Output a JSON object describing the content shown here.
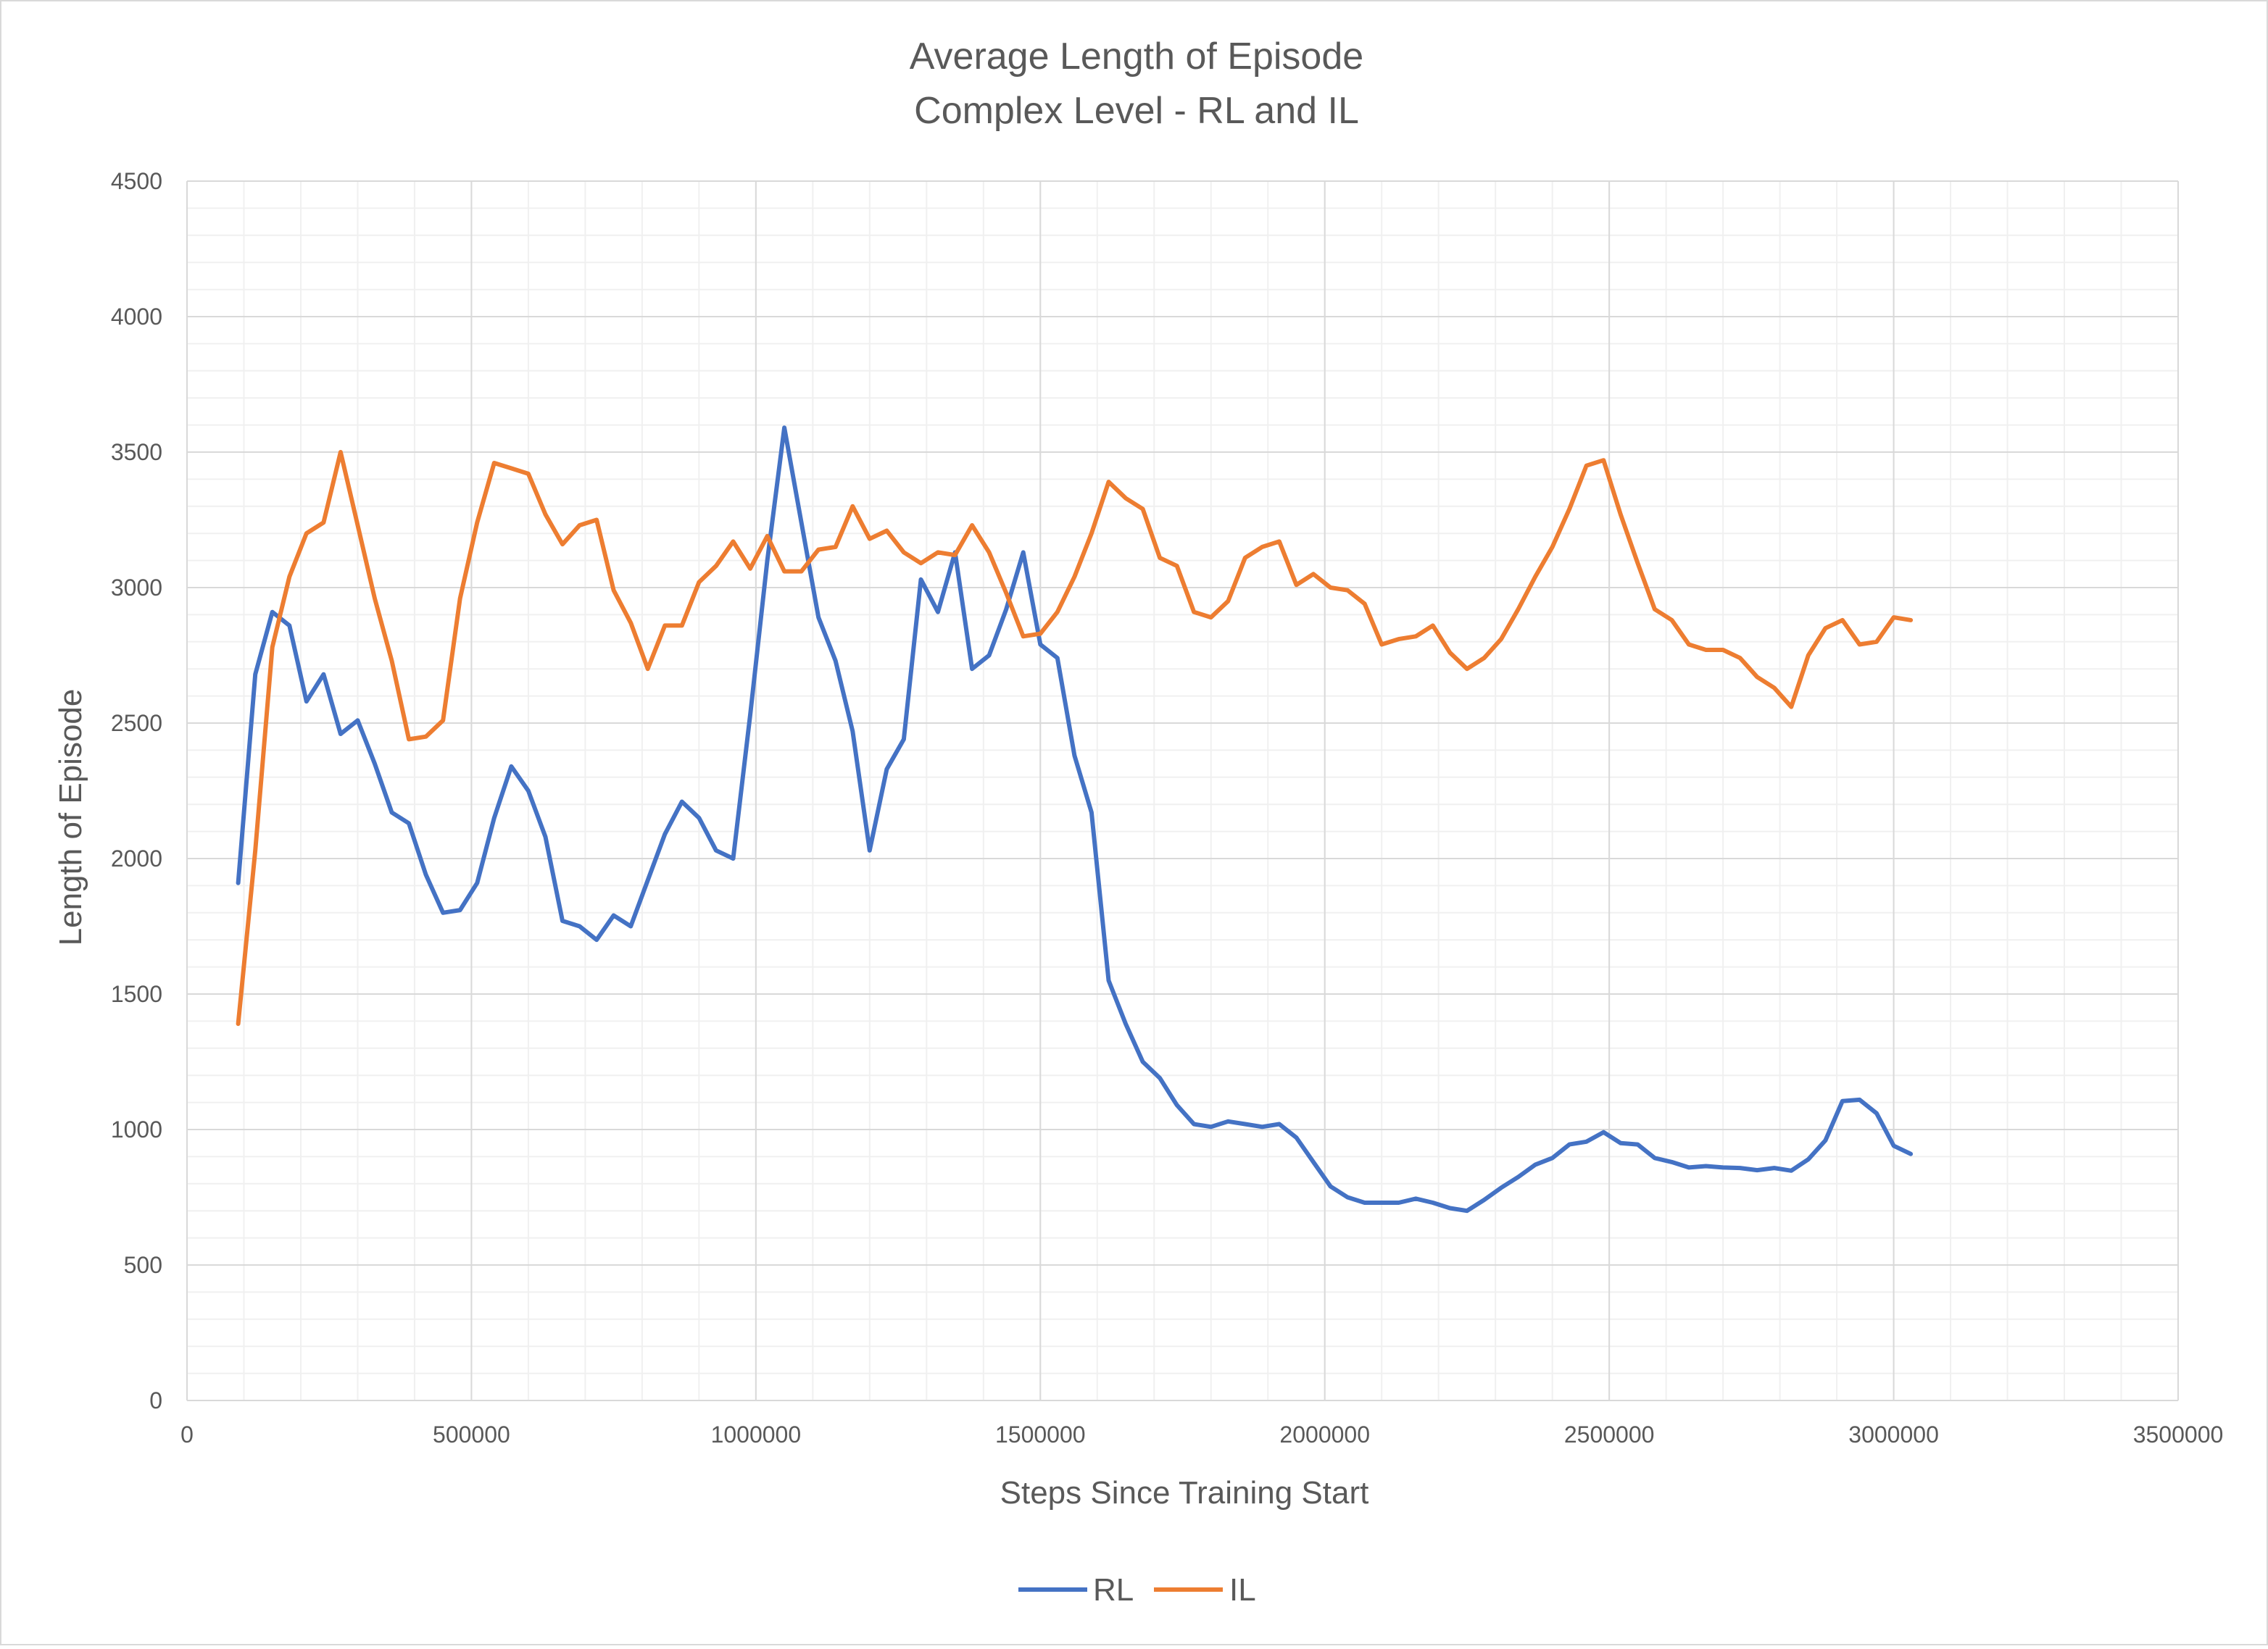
{
  "chart_data": {
    "type": "line",
    "title": "Average Length of Episode",
    "subtitle": "Complex Level - RL and IL",
    "xlabel": "Steps Since Training Start",
    "ylabel": "Length of Episode",
    "xlim": [
      0,
      3500000
    ],
    "ylim": [
      0,
      4500
    ],
    "xticks": [
      0,
      500000,
      1000000,
      1500000,
      2000000,
      2500000,
      3000000,
      3500000
    ],
    "xtick_labels": [
      "0",
      "500000",
      "1000000",
      "1500000",
      "2000000",
      "2500000",
      "3000000",
      "3500000"
    ],
    "yticks": [
      0,
      500,
      1000,
      1500,
      2000,
      2500,
      3000,
      3500,
      4000,
      4500
    ],
    "ytick_labels": [
      "0",
      "500",
      "1000",
      "1500",
      "2000",
      "2500",
      "3000",
      "3500",
      "4000",
      "4500"
    ],
    "grid": true,
    "minor_grid": true,
    "legend_position": "bottom",
    "series": [
      {
        "name": "RL",
        "color": "#4472C4",
        "points": [
          [
            90000,
            1910
          ],
          [
            120000,
            2680
          ],
          [
            150000,
            2910
          ],
          [
            180000,
            2860
          ],
          [
            210000,
            2580
          ],
          [
            240000,
            2680
          ],
          [
            270000,
            2460
          ],
          [
            300000,
            2510
          ],
          [
            330000,
            2350
          ],
          [
            360000,
            2170
          ],
          [
            390000,
            2130
          ],
          [
            420000,
            1940
          ],
          [
            450000,
            1800
          ],
          [
            480000,
            1810
          ],
          [
            510000,
            1910
          ],
          [
            540000,
            2150
          ],
          [
            570000,
            2340
          ],
          [
            600000,
            2250
          ],
          [
            630000,
            2080
          ],
          [
            660000,
            1770
          ],
          [
            690000,
            1750
          ],
          [
            720000,
            1700
          ],
          [
            750000,
            1790
          ],
          [
            780000,
            1750
          ],
          [
            810000,
            1920
          ],
          [
            840000,
            2090
          ],
          [
            870000,
            2210
          ],
          [
            900000,
            2150
          ],
          [
            930000,
            2030
          ],
          [
            960000,
            2000
          ],
          [
            990000,
            2530
          ],
          [
            1020000,
            3100
          ],
          [
            1050000,
            3590
          ],
          [
            1080000,
            3240
          ],
          [
            1110000,
            2890
          ],
          [
            1140000,
            2730
          ],
          [
            1170000,
            2470
          ],
          [
            1200000,
            2030
          ],
          [
            1230000,
            2330
          ],
          [
            1260000,
            2440
          ],
          [
            1290000,
            3030
          ],
          [
            1320000,
            2910
          ],
          [
            1350000,
            3130
          ],
          [
            1380000,
            2700
          ],
          [
            1410000,
            2750
          ],
          [
            1440000,
            2920
          ],
          [
            1470000,
            3130
          ],
          [
            1500000,
            2790
          ],
          [
            1530000,
            2740
          ],
          [
            1560000,
            2380
          ],
          [
            1590000,
            2170
          ],
          [
            1620000,
            1550
          ],
          [
            1650000,
            1390
          ],
          [
            1680000,
            1250
          ],
          [
            1710000,
            1190
          ],
          [
            1740000,
            1090
          ],
          [
            1770000,
            1020
          ],
          [
            1800000,
            1010
          ],
          [
            1830000,
            1030
          ],
          [
            1860000,
            1020
          ],
          [
            1890000,
            1010
          ],
          [
            1920000,
            1020
          ],
          [
            1950000,
            970
          ],
          [
            1980000,
            880
          ],
          [
            2010000,
            790
          ],
          [
            2040000,
            750
          ],
          [
            2070000,
            730
          ],
          [
            2100000,
            730
          ],
          [
            2130000,
            730
          ],
          [
            2160000,
            745
          ],
          [
            2190000,
            730
          ],
          [
            2220000,
            710
          ],
          [
            2250000,
            700
          ],
          [
            2280000,
            740
          ],
          [
            2310000,
            785
          ],
          [
            2340000,
            825
          ],
          [
            2370000,
            870
          ],
          [
            2400000,
            895
          ],
          [
            2430000,
            945
          ],
          [
            2460000,
            955
          ],
          [
            2490000,
            990
          ],
          [
            2520000,
            950
          ],
          [
            2550000,
            945
          ],
          [
            2580000,
            895
          ],
          [
            2610000,
            880
          ],
          [
            2640000,
            860
          ],
          [
            2670000,
            865
          ],
          [
            2700000,
            860
          ],
          [
            2730000,
            858
          ],
          [
            2760000,
            850
          ],
          [
            2790000,
            858
          ],
          [
            2820000,
            848
          ],
          [
            2850000,
            890
          ],
          [
            2880000,
            960
          ],
          [
            2910000,
            1105
          ],
          [
            2940000,
            1110
          ],
          [
            2970000,
            1060
          ],
          [
            3000000,
            940
          ],
          [
            3030000,
            910
          ]
        ]
      },
      {
        "name": "IL",
        "color": "#ED7D31",
        "points": [
          [
            90000,
            1390
          ],
          [
            120000,
            2030
          ],
          [
            150000,
            2780
          ],
          [
            180000,
            3040
          ],
          [
            210000,
            3200
          ],
          [
            240000,
            3240
          ],
          [
            270000,
            3500
          ],
          [
            300000,
            3230
          ],
          [
            330000,
            2960
          ],
          [
            360000,
            2730
          ],
          [
            390000,
            2440
          ],
          [
            420000,
            2450
          ],
          [
            450000,
            2510
          ],
          [
            480000,
            2960
          ],
          [
            510000,
            3240
          ],
          [
            540000,
            3460
          ],
          [
            570000,
            3440
          ],
          [
            600000,
            3420
          ],
          [
            630000,
            3270
          ],
          [
            660000,
            3160
          ],
          [
            690000,
            3230
          ],
          [
            720000,
            3250
          ],
          [
            750000,
            2990
          ],
          [
            780000,
            2870
          ],
          [
            810000,
            2700
          ],
          [
            840000,
            2860
          ],
          [
            870000,
            2860
          ],
          [
            900000,
            3020
          ],
          [
            930000,
            3080
          ],
          [
            960000,
            3170
          ],
          [
            990000,
            3070
          ],
          [
            1020000,
            3190
          ],
          [
            1050000,
            3060
          ],
          [
            1080000,
            3060
          ],
          [
            1110000,
            3140
          ],
          [
            1140000,
            3150
          ],
          [
            1170000,
            3300
          ],
          [
            1200000,
            3180
          ],
          [
            1230000,
            3210
          ],
          [
            1260000,
            3130
          ],
          [
            1290000,
            3090
          ],
          [
            1320000,
            3130
          ],
          [
            1350000,
            3120
          ],
          [
            1380000,
            3230
          ],
          [
            1410000,
            3130
          ],
          [
            1440000,
            2980
          ],
          [
            1470000,
            2820
          ],
          [
            1500000,
            2830
          ],
          [
            1530000,
            2910
          ],
          [
            1560000,
            3040
          ],
          [
            1590000,
            3200
          ],
          [
            1620000,
            3390
          ],
          [
            1650000,
            3330
          ],
          [
            1680000,
            3290
          ],
          [
            1710000,
            3110
          ],
          [
            1740000,
            3080
          ],
          [
            1770000,
            2910
          ],
          [
            1800000,
            2890
          ],
          [
            1830000,
            2950
          ],
          [
            1860000,
            3110
          ],
          [
            1890000,
            3150
          ],
          [
            1920000,
            3170
          ],
          [
            1950000,
            3010
          ],
          [
            1980000,
            3050
          ],
          [
            2010000,
            3000
          ],
          [
            2040000,
            2990
          ],
          [
            2070000,
            2940
          ],
          [
            2100000,
            2790
          ],
          [
            2130000,
            2810
          ],
          [
            2160000,
            2820
          ],
          [
            2190000,
            2860
          ],
          [
            2220000,
            2760
          ],
          [
            2250000,
            2700
          ],
          [
            2280000,
            2740
          ],
          [
            2310000,
            2810
          ],
          [
            2340000,
            2920
          ],
          [
            2370000,
            3040
          ],
          [
            2400000,
            3150
          ],
          [
            2430000,
            3290
          ],
          [
            2460000,
            3450
          ],
          [
            2490000,
            3470
          ],
          [
            2520000,
            3270
          ],
          [
            2550000,
            3090
          ],
          [
            2580000,
            2920
          ],
          [
            2610000,
            2880
          ],
          [
            2640000,
            2790
          ],
          [
            2670000,
            2770
          ],
          [
            2700000,
            2770
          ],
          [
            2730000,
            2740
          ],
          [
            2760000,
            2670
          ],
          [
            2790000,
            2630
          ],
          [
            2820000,
            2560
          ],
          [
            2850000,
            2750
          ],
          [
            2880000,
            2850
          ],
          [
            2910000,
            2880
          ],
          [
            2940000,
            2790
          ],
          [
            2970000,
            2800
          ],
          [
            3000000,
            2890
          ],
          [
            3030000,
            2880
          ]
        ]
      }
    ]
  }
}
